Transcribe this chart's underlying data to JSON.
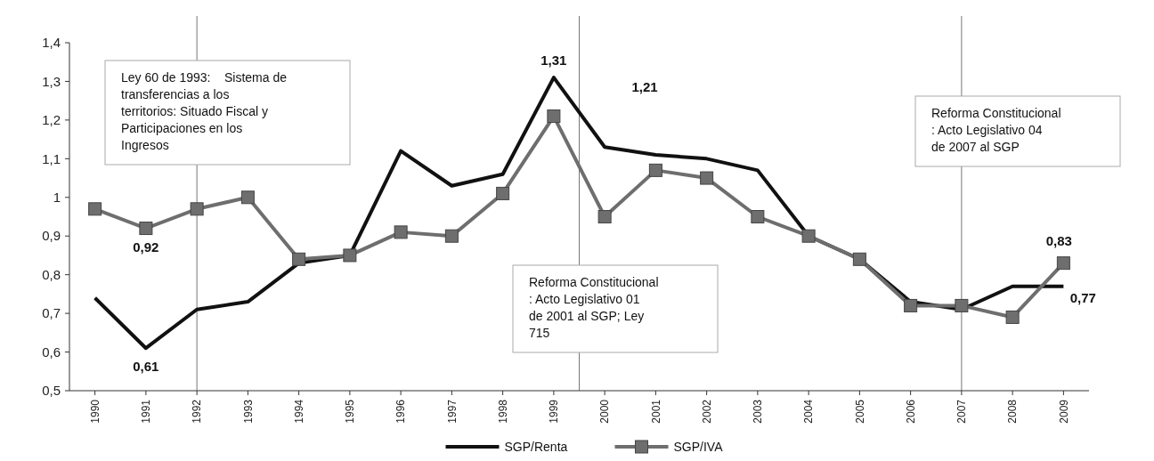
{
  "chart_data": {
    "type": "line",
    "x": [
      1990,
      1991,
      1992,
      1993,
      1994,
      1995,
      1996,
      1997,
      1998,
      1999,
      2000,
      2001,
      2002,
      2003,
      2004,
      2005,
      2006,
      2007,
      2008,
      2009
    ],
    "xlim": [
      1989.5,
      2009.5
    ],
    "xticks": [
      1990,
      1991,
      1992,
      1993,
      1994,
      1995,
      1996,
      1997,
      1998,
      1999,
      2000,
      2001,
      2002,
      2003,
      2004,
      2005,
      2006,
      2007,
      2008,
      2009
    ],
    "ylim": [
      0.5,
      1.4
    ],
    "yticks": [
      {
        "value": 0.5,
        "label": "0,5"
      },
      {
        "value": 0.6,
        "label": "0,6"
      },
      {
        "value": 0.7,
        "label": "0,7"
      },
      {
        "value": 0.8,
        "label": "0,8"
      },
      {
        "value": 0.9,
        "label": "0,9"
      },
      {
        "value": 1,
        "label": "1"
      },
      {
        "value": 1.1,
        "label": "1,1"
      },
      {
        "value": 1.2,
        "label": "1,2"
      },
      {
        "value": 1.3,
        "label": "1,3"
      },
      {
        "value": 1.4,
        "label": "1,4"
      }
    ],
    "series": [
      {
        "name": "SGP/Renta",
        "color": "#111111",
        "marker": "none",
        "values": [
          0.74,
          0.61,
          0.71,
          0.73,
          0.83,
          0.85,
          1.12,
          1.03,
          1.06,
          1.31,
          1.13,
          1.11,
          1.1,
          1.07,
          0.9,
          0.84,
          0.73,
          0.71,
          0.77,
          0.77
        ]
      },
      {
        "name": "SGP/IVA",
        "color": "#6e6e6e",
        "marker": "square",
        "values": [
          0.97,
          0.92,
          0.97,
          1.0,
          0.84,
          0.85,
          0.91,
          0.9,
          1.01,
          1.21,
          0.95,
          1.07,
          1.05,
          0.95,
          0.9,
          0.84,
          0.72,
          0.72,
          0.69,
          0.83
        ]
      }
    ],
    "ref_lines": [
      {
        "axis": "x",
        "value": 1992,
        "label": "Ley 60 de 1993:    Sistema de transferencias a los territorios: Situado Fiscal y Participaciones en los Ingresos"
      },
      {
        "axis": "x",
        "value": 1999.5,
        "label": "Reforma Constitucional : Acto Legislativo 01 de 2001 al SGP; Ley 715"
      },
      {
        "axis": "x",
        "value": 2007,
        "label": "Reforma Constitucional : Acto Legislativo 04 de 2007 al SGP"
      }
    ],
    "annotations": [
      {
        "text": "0,61",
        "x": 1991,
        "y": 0.61
      },
      {
        "text": "0,92",
        "x": 1991,
        "y": 0.92
      },
      {
        "text": "1,31",
        "x": 1999,
        "y": 1.31
      },
      "1,21",
      {
        "text": "0,83",
        "x": 2009,
        "y": 0.83
      },
      {
        "text": "0,77",
        "x": 2009,
        "y": 0.77
      }
    ],
    "legend": "bottom",
    "grid": false
  }
}
